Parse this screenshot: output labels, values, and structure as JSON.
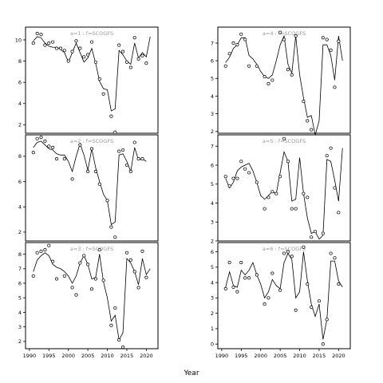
{
  "chart_data": {
    "type": "scatter",
    "xlabel": "Year",
    "xticks": [
      1990,
      1995,
      2000,
      2005,
      2010,
      2015,
      2020
    ],
    "xlim": [
      1989,
      2023
    ],
    "panels": [
      {
        "title": "a=1  :  f=SCOGFS",
        "ylim": [
          1.2,
          11.2
        ],
        "yticks": [
          2,
          4,
          6,
          8,
          10
        ],
        "years": [
          1991,
          1992,
          1993,
          1994,
          1995,
          1996,
          1997,
          1998,
          1999,
          2000,
          2001,
          2002,
          2003,
          2004,
          2005,
          2006,
          2007,
          2008,
          2009,
          2010,
          2011,
          2012,
          2013,
          2014,
          2015,
          2016,
          2017,
          2018,
          2019,
          2020,
          2021
        ],
        "observed": [
          9.7,
          10.6,
          10.5,
          9.5,
          9.7,
          9.8,
          9.2,
          9.2,
          9.0,
          8.0,
          8.9,
          9.9,
          9.2,
          8.4,
          8.6,
          9.8,
          7.9,
          6.3,
          4.9,
          null,
          2.8,
          1.3,
          9.5,
          8.9,
          7.9,
          7.4,
          10.2,
          8.2,
          8.5,
          7.8,
          null
        ],
        "fitted": [
          9.9,
          10.3,
          10.2,
          9.7,
          9.4,
          9.3,
          9.3,
          9.1,
          8.8,
          7.9,
          8.8,
          9.7,
          8.8,
          7.9,
          8.3,
          9.2,
          7.8,
          6.1,
          5.4,
          5.3,
          3.3,
          3.5,
          9.0,
          8.6,
          8.0,
          7.7,
          9.7,
          8.3,
          8.8,
          8.4,
          10.3
        ]
      },
      {
        "title": "a=2  :  f=SCOGFS",
        "ylim": [
          1.3,
          9.7
        ],
        "yticks": [
          2,
          4,
          6,
          8
        ],
        "years": [
          1991,
          1992,
          1993,
          1994,
          1995,
          1996,
          1997,
          1998,
          1999,
          2000,
          2001,
          2002,
          2003,
          2004,
          2005,
          2006,
          2007,
          2008,
          2009,
          2010,
          2011,
          2012,
          2013,
          2014,
          2015,
          2016,
          2017,
          2018,
          2019,
          2020,
          2021
        ],
        "observed": [
          8.3,
          9.4,
          9.5,
          9.2,
          8.8,
          8.7,
          7.8,
          null,
          7.8,
          null,
          6.2,
          null,
          8.9,
          null,
          6.8,
          8.6,
          6.8,
          5.8,
          null,
          4.5,
          2.4,
          1.6,
          8.4,
          8.5,
          7.3,
          6.8,
          9.1,
          7.8,
          7.8,
          null,
          null
        ],
        "fitted": [
          8.7,
          9.1,
          9.2,
          8.9,
          8.6,
          8.5,
          8.2,
          8.1,
          8.1,
          7.6,
          6.8,
          8.0,
          9.0,
          8.1,
          6.9,
          8.6,
          7.1,
          6.0,
          5.0,
          4.5,
          2.6,
          2.8,
          8.1,
          8.2,
          7.6,
          6.8,
          8.7,
          7.7,
          7.8,
          7.6,
          null
        ]
      },
      {
        "title": "a=3  :  f=SCOGFS",
        "ylim": [
          1.5,
          8.8
        ],
        "yticks": [
          2,
          3,
          4,
          5,
          6,
          7,
          8
        ],
        "years": [
          1991,
          1992,
          1993,
          1994,
          1995,
          1996,
          1997,
          1998,
          1999,
          2000,
          2001,
          2002,
          2003,
          2004,
          2005,
          2006,
          2007,
          2008,
          2009,
          2010,
          2011,
          2012,
          2013,
          2014,
          2015,
          2016,
          2017,
          2018,
          2019,
          2020,
          2021
        ],
        "observed": [
          6.5,
          8.1,
          8.2,
          8.3,
          8.6,
          7.5,
          6.3,
          null,
          6.5,
          null,
          5.7,
          5.2,
          7.4,
          7.9,
          7.3,
          5.6,
          6.3,
          8.3,
          6.2,
          null,
          3.1,
          4.3,
          2.1,
          1.6,
          8.1,
          7.6,
          6.8,
          5.7,
          8.2,
          6.4,
          null
        ],
        "fitted": [
          6.8,
          7.6,
          7.9,
          8.1,
          7.9,
          7.3,
          7.1,
          7.0,
          6.8,
          6.5,
          6.0,
          6.5,
          7.4,
          7.9,
          7.3,
          6.3,
          6.4,
          8.0,
          6.1,
          5.0,
          3.4,
          3.8,
          2.1,
          2.6,
          7.7,
          7.4,
          6.8,
          5.9,
          7.7,
          6.6,
          7.0
        ]
      },
      {
        "title": "a=4  :  f=SCOGFS",
        "ylim": [
          1.9,
          7.9
        ],
        "yticks": [
          2,
          3,
          4,
          5,
          6,
          7
        ],
        "years": [
          1991,
          1992,
          1993,
          1994,
          1995,
          1996,
          1997,
          1998,
          1999,
          2000,
          2001,
          2002,
          2003,
          2004,
          2005,
          2006,
          2007,
          2008,
          2009,
          2010,
          2011,
          2012,
          2013,
          2014,
          2015,
          2016,
          2017,
          2018,
          2019,
          2020,
          2021
        ],
        "observed": [
          5.7,
          6.4,
          7.0,
          6.9,
          7.5,
          7.2,
          5.7,
          null,
          5.7,
          null,
          5.1,
          4.7,
          4.9,
          null,
          7.6,
          7.2,
          5.5,
          5.2,
          7.4,
          null,
          3.7,
          2.6,
          2.1,
          null,
          null,
          7.3,
          7.2,
          6.6,
          4.5,
          7.1,
          null
        ],
        "fitted": [
          5.9,
          6.2,
          6.7,
          6.9,
          7.3,
          7.3,
          6.3,
          6.1,
          5.8,
          5.4,
          5.1,
          5.0,
          5.2,
          6.0,
          6.9,
          7.4,
          5.8,
          5.3,
          7.4,
          5.2,
          3.9,
          2.8,
          2.9,
          1.8,
          2.6,
          6.9,
          6.9,
          6.3,
          4.9,
          7.4,
          6.0
        ]
      },
      {
        "title": "a=5  :  f=SCOGFS",
        "ylim": [
          2.0,
          7.6
        ],
        "yticks": [
          2,
          3,
          4,
          5,
          6,
          7
        ],
        "years": [
          1991,
          1992,
          1993,
          1994,
          1995,
          1996,
          1997,
          1998,
          1999,
          2000,
          2001,
          2002,
          2003,
          2004,
          2005,
          2006,
          2007,
          2008,
          2009,
          2010,
          2011,
          2012,
          2013,
          2014,
          2015,
          2016,
          2017,
          2018,
          2019,
          2020,
          2021
        ],
        "observed": [
          5.4,
          4.9,
          5.3,
          5.3,
          6.2,
          5.8,
          5.6,
          null,
          5.1,
          null,
          3.7,
          4.3,
          4.6,
          4.5,
          5.4,
          7.4,
          6.2,
          3.7,
          3.7,
          null,
          4.5,
          4.3,
          2.2,
          2.5,
          null,
          2.4,
          6.5,
          6.9,
          4.8,
          3.5,
          null
        ],
        "fitted": [
          5.3,
          4.8,
          5.1,
          5.7,
          5.9,
          6.0,
          6.1,
          5.7,
          5.1,
          4.4,
          4.2,
          4.4,
          4.6,
          4.5,
          5.6,
          6.7,
          6.2,
          4.1,
          4.2,
          6.4,
          4.5,
          3.2,
          2.4,
          2.5,
          2.1,
          2.3,
          6.3,
          6.2,
          5.2,
          4.1,
          6.9
        ]
      },
      {
        "title": "a=6  :  f=SCOGFS",
        "ylim": [
          -0.3,
          6.6
        ],
        "yticks": [
          0,
          1,
          2,
          3,
          4,
          5,
          6
        ],
        "years": [
          1991,
          1992,
          1993,
          1994,
          1995,
          1996,
          1997,
          1998,
          1999,
          2000,
          2001,
          2002,
          2003,
          2004,
          2005,
          2006,
          2007,
          2008,
          2009,
          2010,
          2011,
          2012,
          2013,
          2014,
          2015,
          2016,
          2017,
          2018,
          2019,
          2020,
          2021
        ],
        "observed": [
          3.6,
          5.3,
          3.7,
          3.4,
          5.3,
          4.3,
          4.3,
          null,
          4.5,
          null,
          2.6,
          3.0,
          4.6,
          null,
          3.5,
          5.9,
          6.0,
          5.7,
          2.2,
          null,
          6.3,
          3.9,
          2.4,
          null,
          2.8,
          0.0,
          1.6,
          5.9,
          5.6,
          3.9,
          null
        ],
        "fitted": [
          3.7,
          4.7,
          3.8,
          3.7,
          4.8,
          4.5,
          4.8,
          5.3,
          4.5,
          3.9,
          3.0,
          3.4,
          4.2,
          3.8,
          3.6,
          5.3,
          5.9,
          5.5,
          3.0,
          3.4,
          6.0,
          4.1,
          2.6,
          1.8,
          2.6,
          0.3,
          1.6,
          5.4,
          5.4,
          4.1,
          3.7
        ]
      }
    ]
  }
}
